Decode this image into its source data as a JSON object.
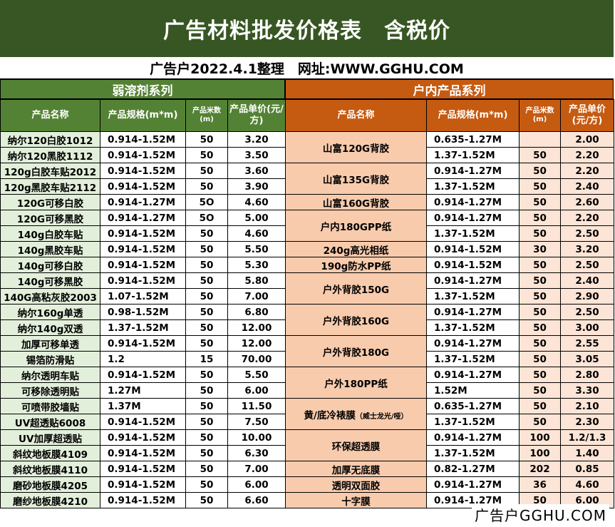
{
  "title": "广告材料批发价格表　含税价",
  "subtitle": "广告户2022.4.1整理　网址:WWW.GGHU.COM",
  "left": {
    "section": "弱溶剂系列",
    "headers": [
      "产品名称",
      "产品规格(m*m)",
      "产品米数(m)",
      "产品单价(元/方)"
    ],
    "rows": [
      [
        "纳尔120白胶1012",
        "0.914-1.52M",
        "50",
        "3.20"
      ],
      [
        "纳尔120黑胶1112",
        "0.914-1.52M",
        "50",
        "3.50"
      ],
      [
        "120g白胶车贴2012",
        "0.914-1.52M",
        "50",
        "3.60"
      ],
      [
        "120g黑胶车贴2112",
        "0.914-1.52M",
        "50",
        "3.90"
      ],
      [
        "120G可移白胶",
        "0.914-1.27M",
        "5O",
        "4.60"
      ],
      [
        "120G可移黑胶",
        "0.914-1.27M",
        "5O",
        "5.00"
      ],
      [
        "140g白胶车贴",
        "0.914-1.52M",
        "50",
        "4.60"
      ],
      [
        "140g黑胶车贴",
        "0.914-1.52M",
        "50",
        "5.50"
      ],
      [
        "140g可移白胶",
        "0.914-1.52M",
        "50",
        "5.30"
      ],
      [
        "140g可移黑胶",
        "0.914-1.52M",
        "50",
        "5.80"
      ],
      [
        "140G高粘灰胶2003",
        "1.07-1.52M",
        "50",
        "7.00"
      ],
      [
        "纳尔160g单透",
        "0.98-1.52M",
        "50",
        "6.80"
      ],
      [
        "纳尔140g双透",
        "1.37-1.52M",
        "50",
        "12.00"
      ],
      [
        "加厚可移单透",
        "0.914-1.52M",
        "50",
        "12.00"
      ],
      [
        "锡箔防滑贴",
        "1.2",
        "15",
        "70.00"
      ],
      [
        "纳尔透明车贴",
        "0.914-1.52M",
        "50",
        "5.50"
      ],
      [
        "可移除透明贴",
        "1.27M",
        "50",
        "6.00"
      ],
      [
        "可喷带胶墙贴",
        "1.37M",
        "50",
        "11.50"
      ],
      [
        "UV超透贴6008",
        "0.914-1.52M",
        "50",
        "7.50"
      ],
      [
        "UV加厚超透贴",
        "0.914-1.52M",
        "50",
        "10.00"
      ],
      [
        "斜纹地板膜4109",
        "0.914-1.52M",
        "50",
        "6.30"
      ],
      [
        "斜纹地板膜4110",
        "0.914-1.52M",
        "50",
        "7.00"
      ],
      [
        "磨砂地板膜4205",
        "0.914-1.52M",
        "50",
        "6.00"
      ],
      [
        "磨纱地板膜4210",
        "0.914-1.52M",
        "50",
        "6.60"
      ]
    ]
  },
  "right": {
    "section": "户内产品系列",
    "headers": [
      "产品名称",
      "产品规格(m*m)",
      "产品米数(m)",
      "产品单价(元/方)"
    ],
    "groups": [
      {
        "name": "山富120G背胶",
        "name_note": "",
        "rows": [
          [
            "0.635-1.27M",
            "",
            "2.00"
          ],
          [
            "1.37-1.52M",
            "50",
            "2.20"
          ]
        ]
      },
      {
        "name": "山富135G背胶",
        "name_note": "",
        "rows": [
          [
            "0.914-1.27M",
            "50",
            "2.20"
          ],
          [
            "1.37-1.52M",
            "50",
            "2.40"
          ]
        ]
      },
      {
        "name": "山富160G背胶",
        "name_note": "",
        "rows": [
          [
            "0.914-1.27M",
            "50",
            "2.60"
          ]
        ]
      },
      {
        "name": "户内180GPP纸",
        "name_note": "",
        "rows": [
          [
            "0.914-1.27M",
            "50",
            "2.20"
          ],
          [
            "1.37-1.52M",
            "50",
            "2.50"
          ]
        ]
      },
      {
        "name": "240g高光相纸",
        "name_note": "",
        "rows": [
          [
            "0.914-1.52M",
            "30",
            "3.20"
          ]
        ]
      },
      {
        "name": "190g防水PP纸",
        "name_note": "",
        "rows": [
          [
            "0.914-1.52M",
            "50",
            "2.50"
          ]
        ]
      },
      {
        "name": "户外背胶150G",
        "name_note": "",
        "rows": [
          [
            "0.914-1.27M",
            "50",
            "2.40"
          ],
          [
            "1.37-1.52M",
            "50",
            "2.90"
          ]
        ]
      },
      {
        "name": "户外背胶160G",
        "name_note": "",
        "rows": [
          [
            "0.914-1.27M",
            "50",
            "2.50"
          ],
          [
            "1.37-1.52M",
            "50",
            "3.00"
          ]
        ]
      },
      {
        "name": "户外背胶180G",
        "name_note": "",
        "rows": [
          [
            "0.914-1.27M",
            "50",
            "2.55"
          ],
          [
            "1.37-1.52M",
            "50",
            "3.05"
          ]
        ]
      },
      {
        "name": "户外180PP纸",
        "name_note": "",
        "rows": [
          [
            "0.914-1.27M",
            "50",
            "2.80"
          ],
          [
            "1.52M",
            "50",
            "3.30"
          ]
        ]
      },
      {
        "name": "黄/底冷裱膜",
        "name_note": "（威士龙光/哑）",
        "rows": [
          [
            "0.635-1.27M",
            "50",
            "2.10"
          ],
          [
            "1.37-1.52M",
            "50",
            "2.30"
          ]
        ]
      },
      {
        "name": "环保超透膜",
        "name_note": "",
        "rows": [
          [
            "0.914-1.27M",
            "100",
            "1.2/1.3"
          ],
          [
            "1.37-1.52M",
            "100",
            "1.40"
          ]
        ]
      },
      {
        "name": "加厚无底膜",
        "name_note": "",
        "rows": [
          [
            "0.82-1.27M",
            "202",
            "0.85"
          ]
        ]
      },
      {
        "name": "透明双面胶",
        "name_note": "",
        "rows": [
          [
            "0.914-1.27M",
            "36",
            "4.60"
          ]
        ]
      },
      {
        "name": "十字膜",
        "name_note": "",
        "rows": [
          [
            "0.914-1.27M",
            "50",
            "6.00"
          ]
        ]
      }
    ]
  },
  "watermark": "广告户GGHU.COM"
}
